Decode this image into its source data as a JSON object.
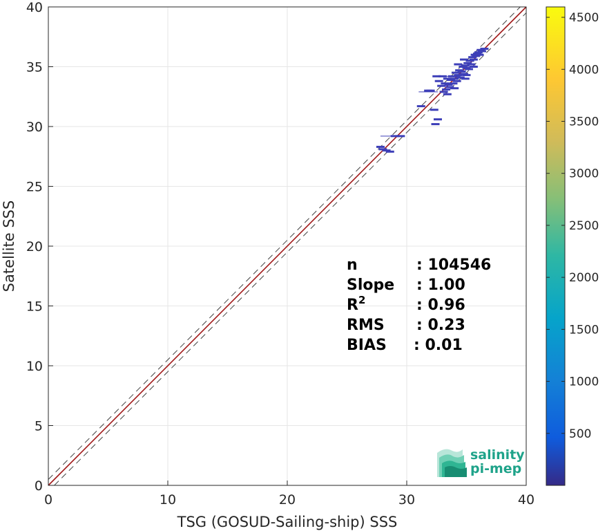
{
  "chart_data": {
    "type": "heatmap",
    "xlabel": "TSG (GOSUD-Sailing-ship) SSS",
    "ylabel": "Satellite SSS",
    "xlim": [
      0,
      40
    ],
    "ylim": [
      0,
      40
    ],
    "xticks": [
      "0",
      "10",
      "20",
      "30",
      "40"
    ],
    "yticks": [
      "0",
      "5",
      "10",
      "15",
      "20",
      "25",
      "30",
      "35",
      "40"
    ],
    "grid": true,
    "reference_lines": {
      "identity": {
        "slope": 1,
        "intercept": 0,
        "style": "solid",
        "color": "#a01818"
      },
      "upper": {
        "slope": 1,
        "intercept": 0.5,
        "style": "dashed",
        "color": "#444444"
      },
      "lower": {
        "slope": 1,
        "intercept": -0.5,
        "style": "dashed",
        "color": "#444444"
      }
    },
    "colorbar": {
      "ticks": [
        "500",
        "1000",
        "1500",
        "2000",
        "2500",
        "3000",
        "3500",
        "4000",
        "4500"
      ],
      "range": [
        0,
        4600
      ],
      "colormap": "parula"
    },
    "stats": [
      {
        "key": "n",
        "sep": ":",
        "value": "104546"
      },
      {
        "key": "Slope",
        "sep": ":",
        "value": "1.00"
      },
      {
        "key": "R",
        "sup": "2",
        "sep": ":",
        "value": "0.96"
      },
      {
        "key": "RMS",
        "sep": ":",
        "value": "0.23"
      },
      {
        "key": "BIAS",
        "sep": ":",
        "value": "0.01"
      }
    ],
    "points": [
      {
        "x": 27.8,
        "y": 28.3
      },
      {
        "x": 28.0,
        "y": 28.1
      },
      {
        "x": 28.3,
        "y": 28.0
      },
      {
        "x": 28.6,
        "y": 27.9
      },
      {
        "x": 29.0,
        "y": 29.2
      },
      {
        "x": 29.5,
        "y": 29.2
      },
      {
        "x": 31.2,
        "y": 31.7
      },
      {
        "x": 31.8,
        "y": 33.0
      },
      {
        "x": 32.0,
        "y": 33.0
      },
      {
        "x": 32.3,
        "y": 31.4
      },
      {
        "x": 32.4,
        "y": 30.2
      },
      {
        "x": 32.6,
        "y": 30.6
      },
      {
        "x": 32.5,
        "y": 34.2
      },
      {
        "x": 32.7,
        "y": 33.8
      },
      {
        "x": 32.9,
        "y": 33.4
      },
      {
        "x": 33.0,
        "y": 34.2
      },
      {
        "x": 33.1,
        "y": 32.9
      },
      {
        "x": 33.2,
        "y": 33.6
      },
      {
        "x": 33.3,
        "y": 33.1
      },
      {
        "x": 33.4,
        "y": 34.0
      },
      {
        "x": 33.5,
        "y": 33.5
      },
      {
        "x": 33.6,
        "y": 33.3
      },
      {
        "x": 33.7,
        "y": 33.9
      },
      {
        "x": 33.8,
        "y": 34.2
      },
      {
        "x": 33.9,
        "y": 33.6
      },
      {
        "x": 34.0,
        "y": 34.0
      },
      {
        "x": 34.1,
        "y": 34.5
      },
      {
        "x": 34.2,
        "y": 33.8
      },
      {
        "x": 34.3,
        "y": 34.3
      },
      {
        "x": 34.4,
        "y": 34.7
      },
      {
        "x": 34.5,
        "y": 34.1
      },
      {
        "x": 34.6,
        "y": 34.6
      },
      {
        "x": 34.7,
        "y": 35.0
      },
      {
        "x": 34.8,
        "y": 34.4
      },
      {
        "x": 34.9,
        "y": 35.1
      },
      {
        "x": 35.0,
        "y": 34.9
      },
      {
        "x": 35.1,
        "y": 35.3
      },
      {
        "x": 35.2,
        "y": 34.8
      },
      {
        "x": 35.3,
        "y": 35.5
      },
      {
        "x": 35.4,
        "y": 35.2
      },
      {
        "x": 35.5,
        "y": 35.8
      },
      {
        "x": 35.6,
        "y": 35.6
      },
      {
        "x": 35.7,
        "y": 36.0
      },
      {
        "x": 35.8,
        "y": 35.9
      },
      {
        "x": 35.9,
        "y": 36.1
      },
      {
        "x": 36.0,
        "y": 36.2
      },
      {
        "x": 36.1,
        "y": 36.0
      },
      {
        "x": 36.2,
        "y": 36.4
      },
      {
        "x": 36.3,
        "y": 36.3
      },
      {
        "x": 36.5,
        "y": 36.5
      },
      {
        "x": 34.9,
        "y": 34.0
      },
      {
        "x": 34.0,
        "y": 33.2
      },
      {
        "x": 33.4,
        "y": 32.7
      },
      {
        "x": 34.3,
        "y": 35.2
      },
      {
        "x": 34.8,
        "y": 35.6
      },
      {
        "x": 35.0,
        "y": 34.3
      },
      {
        "x": 35.6,
        "y": 35.0
      }
    ]
  },
  "logo": {
    "line1": "salinity",
    "line2": "pi-mep"
  },
  "colors": {
    "identity_line": "#a01818",
    "dashed_line": "#444444",
    "points": "#3d3fb8",
    "logo": "#1fa38a"
  }
}
